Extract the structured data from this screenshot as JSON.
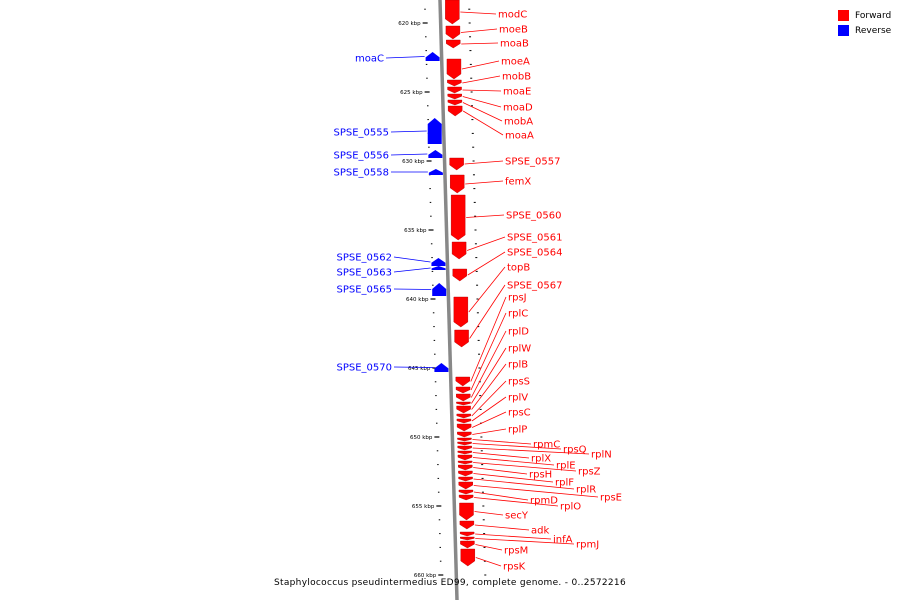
{
  "legend": {
    "forward_label": "Forward",
    "reverse_label": "Reverse",
    "forward_color": "#ff0000",
    "reverse_color": "#0000ff"
  },
  "footer": {
    "caption": "Staphylococcus pseudintermedius ED99, complete genome. - 0..2572216"
  },
  "axis": {
    "unit": "kbp",
    "ticks": [
      {
        "kbp": 620,
        "label": "620 kbp"
      },
      {
        "kbp": 625,
        "label": "625 kbp"
      },
      {
        "kbp": 630,
        "label": "630 kbp"
      },
      {
        "kbp": 635,
        "label": "635 kbp"
      },
      {
        "kbp": 640,
        "label": "640 kbp"
      },
      {
        "kbp": 645,
        "label": "645 kbp"
      },
      {
        "kbp": 650,
        "label": "650 kbp"
      },
      {
        "kbp": 655,
        "label": "655 kbp"
      },
      {
        "kbp": 660,
        "label": "660 kbp"
      }
    ]
  },
  "genes_reverse": [
    {
      "name": "moaC"
    },
    {
      "name": "SPSE_0555"
    },
    {
      "name": "SPSE_0556"
    },
    {
      "name": "SPSE_0558"
    },
    {
      "name": "SPSE_0562"
    },
    {
      "name": "SPSE_0563"
    },
    {
      "name": "SPSE_0565"
    },
    {
      "name": "SPSE_0570"
    }
  ],
  "genes_forward": [
    {
      "name": "modC"
    },
    {
      "name": "moeB"
    },
    {
      "name": "moaB"
    },
    {
      "name": "moeA"
    },
    {
      "name": "mobB"
    },
    {
      "name": "moaE"
    },
    {
      "name": "moaD"
    },
    {
      "name": "mobA"
    },
    {
      "name": "moaA"
    },
    {
      "name": "SPSE_0557"
    },
    {
      "name": "femX"
    },
    {
      "name": "SPSE_0560"
    },
    {
      "name": "SPSE_0561"
    },
    {
      "name": "SPSE_0564"
    },
    {
      "name": "topB"
    },
    {
      "name": "SPSE_0567"
    },
    {
      "name": "rpsJ"
    },
    {
      "name": "rplC"
    },
    {
      "name": "rplD"
    },
    {
      "name": "rplW"
    },
    {
      "name": "rplB"
    },
    {
      "name": "rpsS"
    },
    {
      "name": "rplV"
    },
    {
      "name": "rpsC"
    },
    {
      "name": "rplP"
    },
    {
      "name": "rpmC"
    },
    {
      "name": "rpsQ"
    },
    {
      "name": "rplN"
    },
    {
      "name": "rplX"
    },
    {
      "name": "rplE"
    },
    {
      "name": "rpsZ"
    },
    {
      "name": "rpsH"
    },
    {
      "name": "rplF"
    },
    {
      "name": "rplR"
    },
    {
      "name": "rpsE"
    },
    {
      "name": "rpmD"
    },
    {
      "name": "rplO"
    },
    {
      "name": "secY"
    },
    {
      "name": "adk"
    },
    {
      "name": "infA"
    },
    {
      "name": "rpmJ"
    },
    {
      "name": "rpsM"
    },
    {
      "name": "rpsK"
    }
  ]
}
